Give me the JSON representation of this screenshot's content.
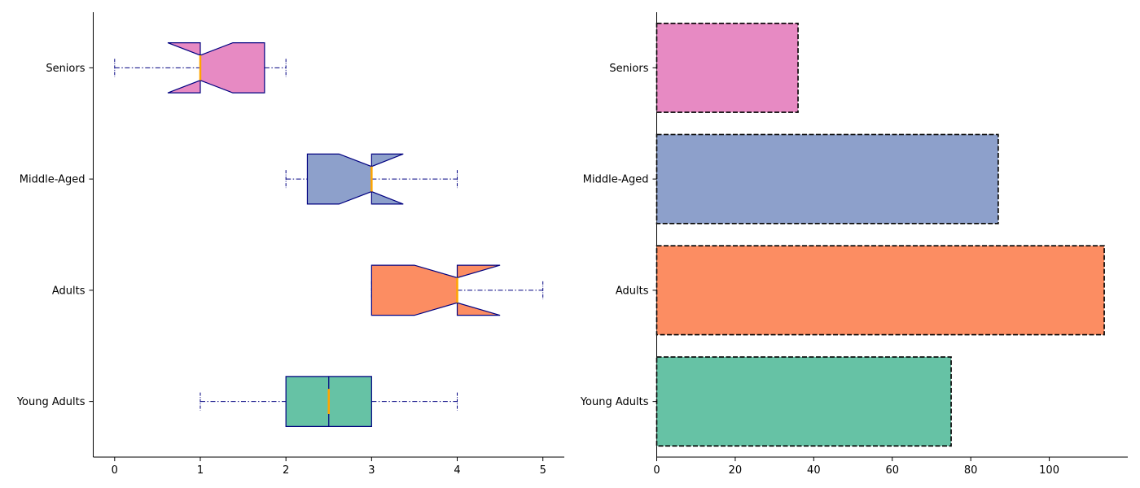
{
  "chart_data": [
    {
      "type": "boxplot",
      "orientation": "horizontal",
      "notched": true,
      "categories": [
        "Young Adults",
        "Adults",
        "Middle-Aged",
        "Seniors"
      ],
      "boxes": [
        {
          "category": "Young Adults",
          "whisker_low": 1,
          "q1": 2,
          "median": 2.5,
          "q3": 3,
          "whisker_high": 4,
          "notch_low": 2.5,
          "notch_high": 2.5,
          "color": "#66c2a5"
        },
        {
          "category": "Adults",
          "whisker_low": 3,
          "q1": 3,
          "median": 4,
          "q3": 4,
          "whisker_high": 5,
          "notch_low": 3.5,
          "notch_high": 4.5,
          "color": "#fc8d62"
        },
        {
          "category": "Middle-Aged",
          "whisker_low": 2,
          "q1": 2.25,
          "median": 3,
          "q3": 3,
          "whisker_high": 4,
          "notch_low": 2.62,
          "notch_high": 3.37,
          "color": "#8da0cb"
        },
        {
          "category": "Seniors",
          "whisker_low": 0,
          "q1": 1,
          "median": 1,
          "q3": 1.75,
          "whisker_high": 2,
          "notch_low": 0.62,
          "notch_high": 1.38,
          "color": "#e78ac3"
        }
      ],
      "xlim": [
        -0.25,
        5.25
      ],
      "xticks": [
        0,
        1,
        2,
        3,
        4,
        5
      ],
      "title": "",
      "xlabel": "",
      "ylabel": "",
      "box_edge_color": "#000080",
      "median_color": "#ffa500",
      "whisker_style": "dashdot",
      "grid": false
    },
    {
      "type": "bar",
      "orientation": "horizontal",
      "categories": [
        "Young Adults",
        "Adults",
        "Middle-Aged",
        "Seniors"
      ],
      "values": [
        75,
        114,
        87,
        36
      ],
      "colors": [
        "#66c2a5",
        "#fc8d62",
        "#8da0cb",
        "#e78ac3"
      ],
      "xlim": [
        0,
        120
      ],
      "xticks": [
        0,
        20,
        40,
        60,
        80,
        100
      ],
      "title": "",
      "xlabel": "",
      "ylabel": "",
      "edge_style": "dashed",
      "edge_color": "#000000",
      "grid": false
    }
  ]
}
